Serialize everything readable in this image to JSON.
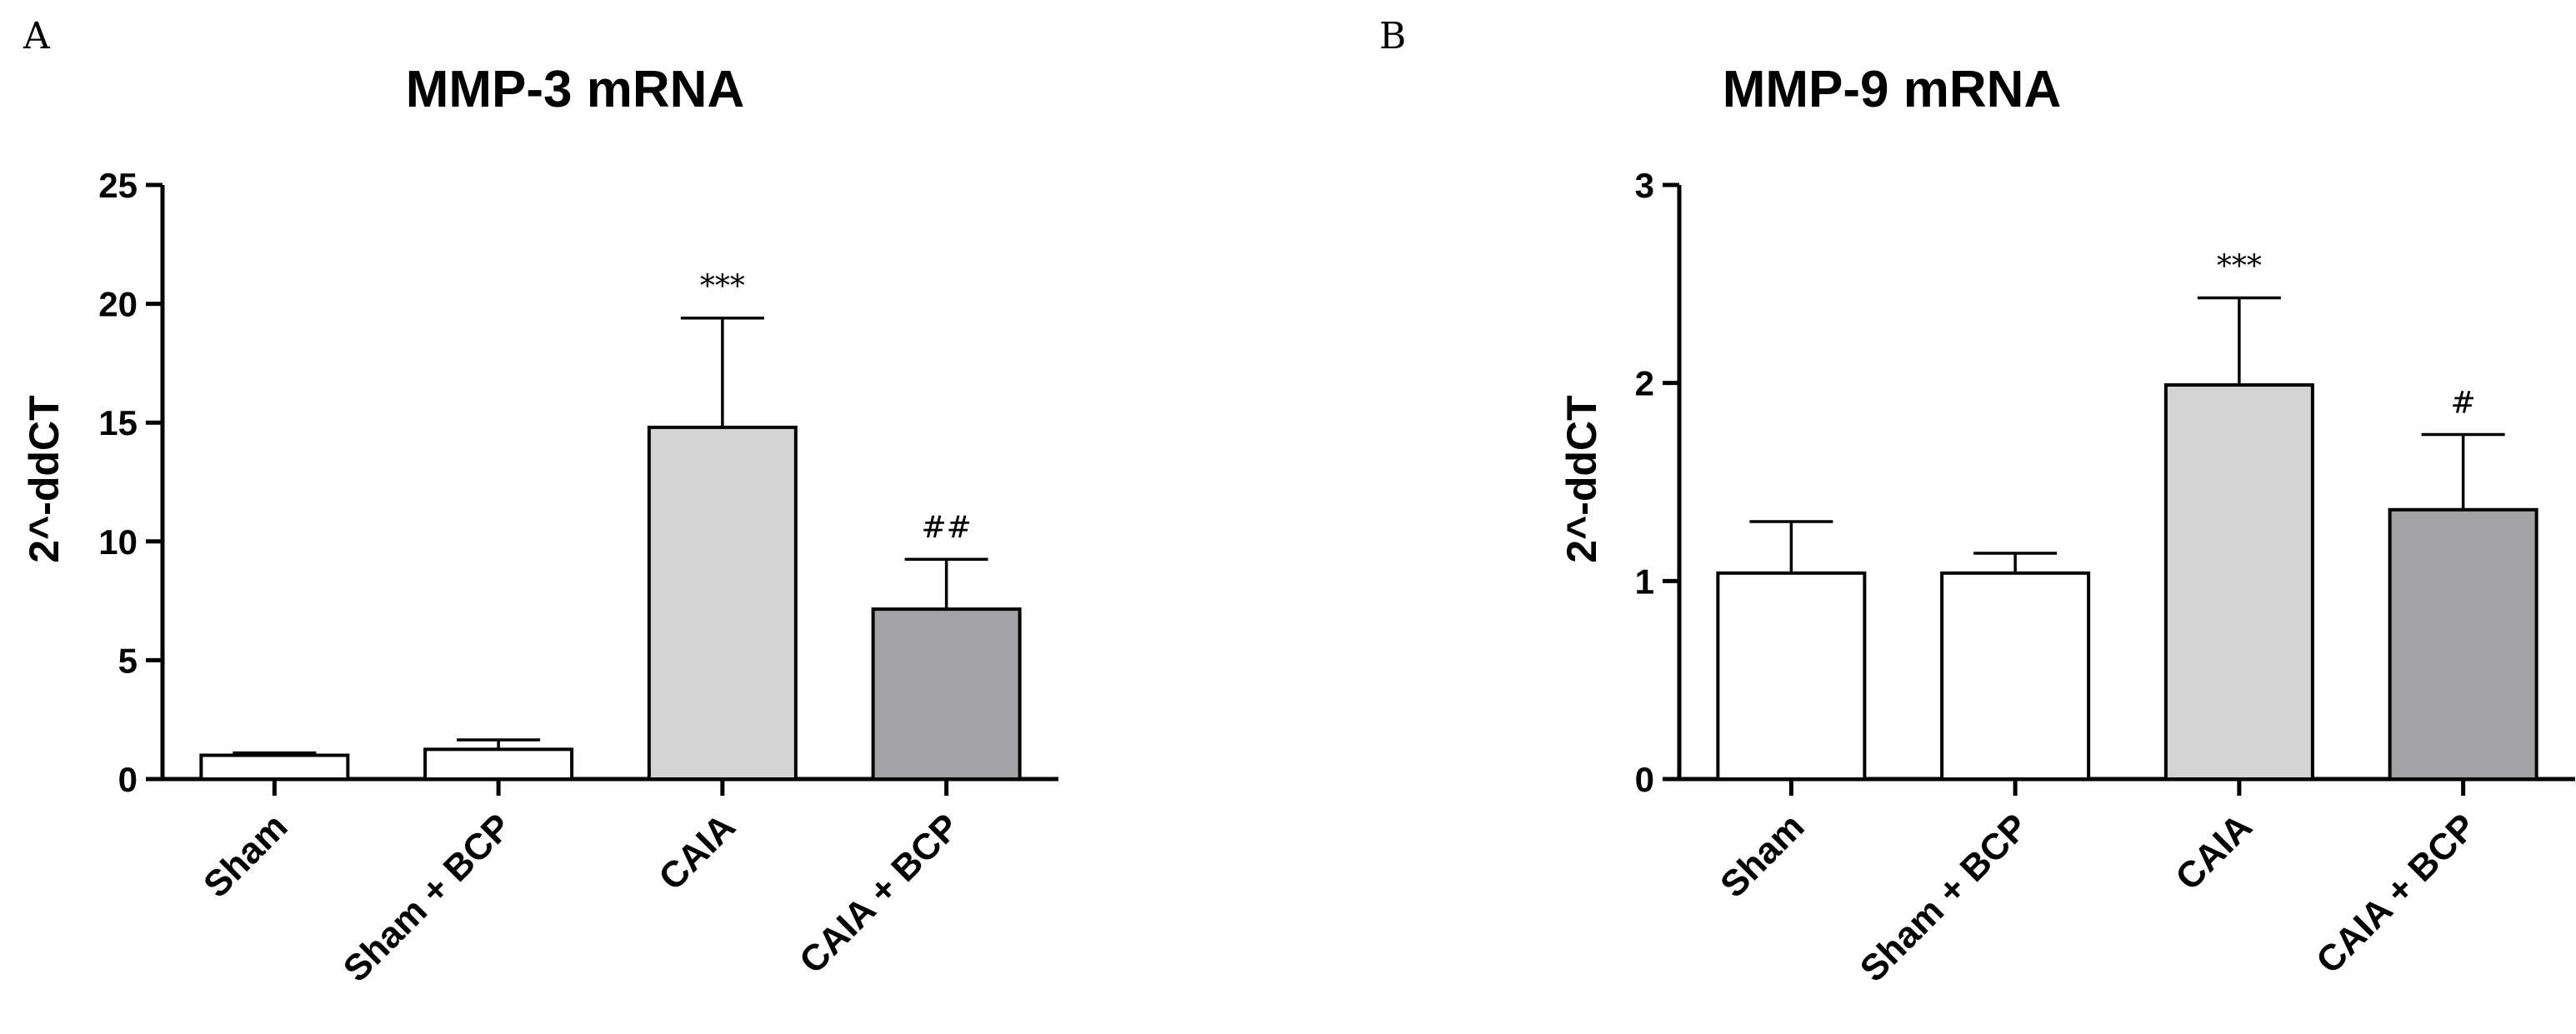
{
  "chart_data": [
    {
      "type": "bar",
      "panel": "A",
      "title": "MMP-3 mRNA",
      "xlabel": "",
      "ylabel": "2^-ddCT",
      "ylim": [
        0,
        25
      ],
      "yticks": [
        0,
        5,
        10,
        15,
        20,
        25
      ],
      "categories": [
        "Sham",
        "Sham + BCP",
        "CAIA",
        "CAIA + BCP"
      ],
      "values": [
        1.0,
        1.25,
        14.8,
        7.15
      ],
      "errors": [
        0.1,
        0.4,
        4.6,
        2.1
      ],
      "annotations": [
        "",
        "",
        "***",
        "##"
      ],
      "bar_colors": [
        "#ffffff",
        "#ffffff",
        "#d4d4d4",
        "#a3a3a6"
      ]
    },
    {
      "type": "bar",
      "panel": "B",
      "title": "MMP-9 mRNA",
      "xlabel": "",
      "ylabel": "2^-ddCT",
      "ylim": [
        0,
        3
      ],
      "yticks": [
        0,
        1,
        2,
        3
      ],
      "categories": [
        "Sham",
        "Sham + BCP",
        "CAIA",
        "CAIA + BCP"
      ],
      "values": [
        1.04,
        1.04,
        1.99,
        1.36
      ],
      "errors": [
        0.26,
        0.1,
        0.44,
        0.38
      ],
      "annotations": [
        "",
        "",
        "***",
        "#"
      ],
      "bar_colors": [
        "#ffffff",
        "#ffffff",
        "#d4d4d4",
        "#a3a3a6"
      ]
    }
  ]
}
